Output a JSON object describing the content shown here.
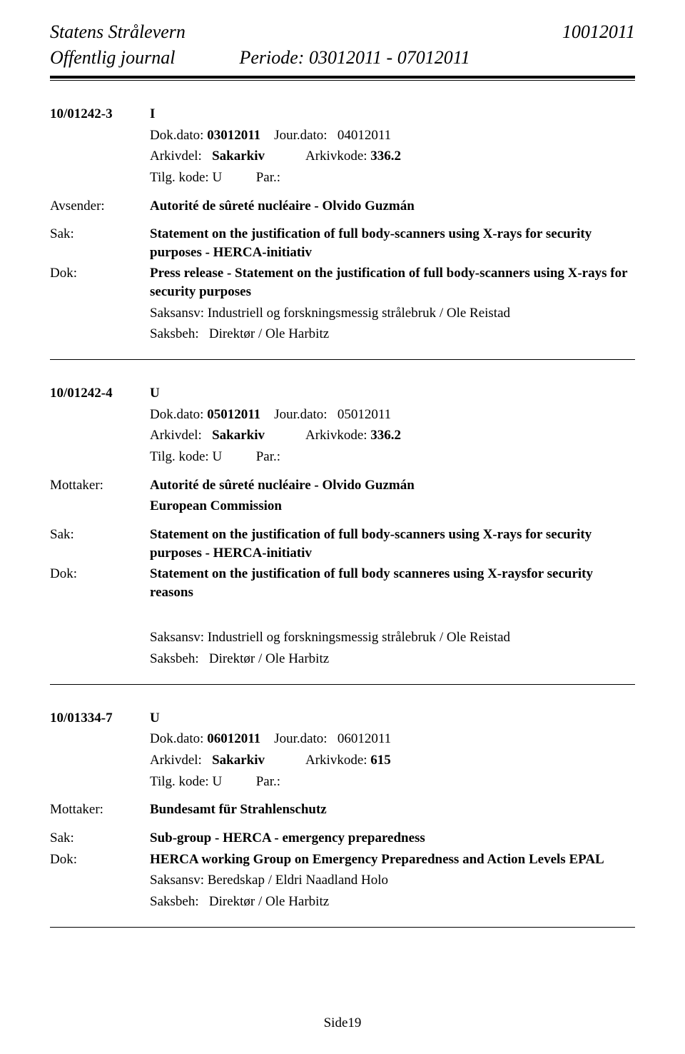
{
  "header": {
    "org": "Statens Strålevern",
    "doc_id": "10012011",
    "journal_label": "Offentlig journal",
    "period_label": "Periode: 03012011 - 07012011"
  },
  "entries": [
    {
      "case_no": "10/01242-3",
      "dir": "I",
      "dokdato_label": "Dok.dato:",
      "dokdato": "03012011",
      "jourdato_label": "Jour.dato:",
      "jourdato": "04012011",
      "arkivdel_label": "Arkivdel:",
      "arkivdel": "Sakarkiv",
      "arkivkode_label": "Arkivkode:",
      "arkivkode": "336.2",
      "tilg_label": "Tilg. kode:",
      "tilg": "U",
      "par_label": "Par.:",
      "party_label": "Avsender:",
      "party_lines": [
        "Autorité de sûreté nucléaire - Olvido Guzmán"
      ],
      "sak_label": "Sak:",
      "sak": "Statement on the justification of full body-scanners using X-rays for security purposes - HERCA-initiativ",
      "dok_label": "Dok:",
      "dok": "Press release - Statement on the justification of full body-scanners using X-rays for security purposes",
      "saksansv_label": "Saksansv:",
      "saksansv": "Industriell og forskningsmessig strålebruk / Ole Reistad",
      "saksbeh_label": "Saksbeh:",
      "saksbeh": "Direktør / Ole Harbitz",
      "trailing_block": false
    },
    {
      "case_no": "10/01242-4",
      "dir": "U",
      "dokdato_label": "Dok.dato:",
      "dokdato": "05012011",
      "jourdato_label": "Jour.dato:",
      "jourdato": "05012011",
      "arkivdel_label": "Arkivdel:",
      "arkivdel": "Sakarkiv",
      "arkivkode_label": "Arkivkode:",
      "arkivkode": "336.2",
      "tilg_label": "Tilg. kode:",
      "tilg": "U",
      "par_label": "Par.:",
      "party_label": "Mottaker:",
      "party_lines": [
        "Autorité de sûreté nucléaire - Olvido Guzmán",
        "European Commission"
      ],
      "sak_label": "Sak:",
      "sak": "Statement on the justification of full body-scanners using X-rays for security purposes - HERCA-initiativ",
      "dok_label": "Dok:",
      "dok": "Statement on the justification of full body scanneres using X-raysfor security reasons",
      "saksansv_label": "Saksansv:",
      "saksansv": "Industriell og forskningsmessig strålebruk / Ole Reistad",
      "saksbeh_label": "Saksbeh:",
      "saksbeh": "Direktør / Ole Harbitz",
      "trailing_block": true
    },
    {
      "case_no": "10/01334-7",
      "dir": "U",
      "dokdato_label": "Dok.dato:",
      "dokdato": "06012011",
      "jourdato_label": "Jour.dato:",
      "jourdato": "06012011",
      "arkivdel_label": "Arkivdel:",
      "arkivdel": "Sakarkiv",
      "arkivkode_label": "Arkivkode:",
      "arkivkode": "615",
      "tilg_label": "Tilg. kode:",
      "tilg": "U",
      "par_label": "Par.:",
      "party_label": "Mottaker:",
      "party_lines": [
        "Bundesamt für Strahlenschutz"
      ],
      "sak_label": "Sak:",
      "sak": "Sub-group - HERCA - emergency preparedness",
      "dok_label": "Dok:",
      "dok": "HERCA working Group on Emergency Preparedness and Action Levels EPAL",
      "saksansv_label": "Saksansv:",
      "saksansv": "Beredskap / Eldri Naadland Holo",
      "saksbeh_label": "Saksbeh:",
      "saksbeh": "Direktør / Ole Harbitz",
      "trailing_block": false
    }
  ],
  "footer": {
    "page": "Side19"
  }
}
